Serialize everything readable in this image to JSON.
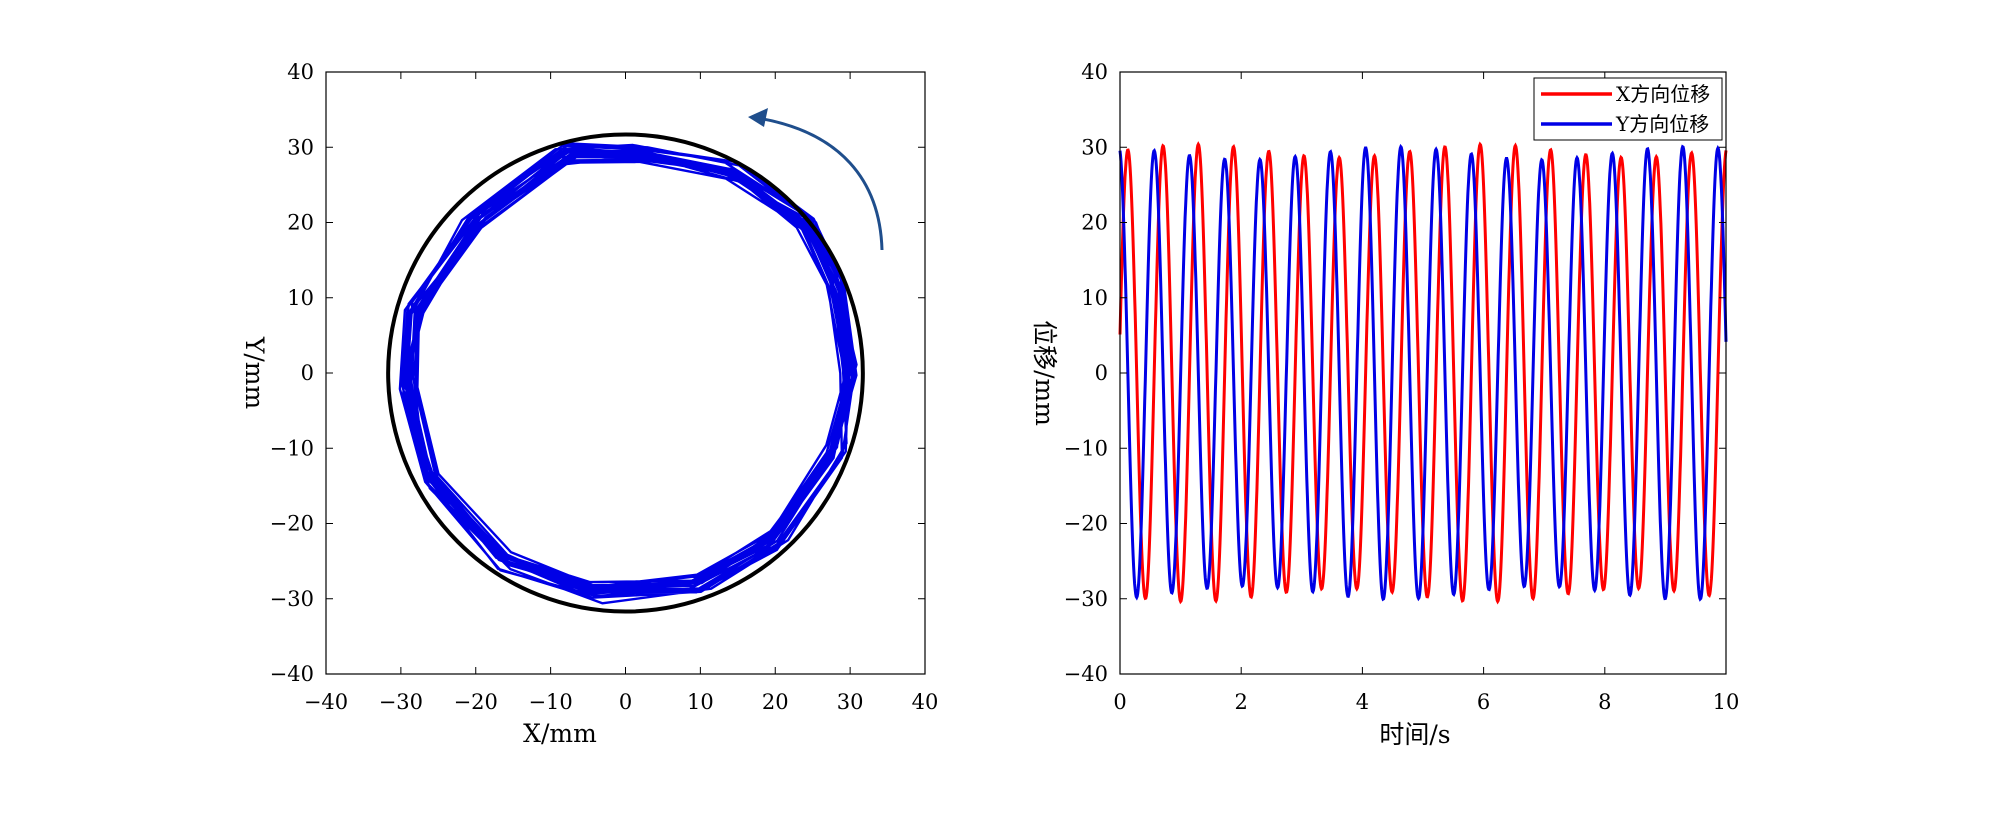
{
  "chart_data": [
    {
      "type": "line",
      "xlabel": "X/mm",
      "ylabel": "Y/mm",
      "xlim": [
        -40,
        40
      ],
      "ylim": [
        -40,
        40
      ],
      "xticks": [
        -40,
        -30,
        -20,
        -10,
        0,
        10,
        20,
        30,
        40
      ],
      "yticks": [
        -40,
        -30,
        -20,
        -10,
        0,
        10,
        20,
        30,
        40
      ],
      "grid": false,
      "reference_circle": {
        "cx": 0,
        "cy": 0,
        "r": 31.7,
        "color": "#000000"
      },
      "trajectory": {
        "color": "#0000e6",
        "nominal_radius": 29.5,
        "turns": 18,
        "vertices": [
          [
            30,
            0
          ],
          [
            28,
            12
          ],
          [
            24,
            20
          ],
          [
            14,
            27
          ],
          [
            2,
            29
          ],
          [
            -8,
            29
          ],
          [
            -20,
            20
          ],
          [
            -28,
            8
          ],
          [
            -29,
            -2
          ],
          [
            -26,
            -14
          ],
          [
            -16,
            -25
          ],
          [
            -4,
            -29
          ],
          [
            10,
            -28
          ],
          [
            20,
            -22
          ],
          [
            28,
            -10
          ]
        ]
      },
      "annotation": {
        "type": "rotation-arrow",
        "direction": "counterclockwise",
        "color": "#1f4e8c"
      }
    },
    {
      "type": "line",
      "xlabel": "时间/s",
      "ylabel": "位移/mm",
      "xlim": [
        0,
        10
      ],
      "ylim": [
        -40,
        40
      ],
      "xticks": [
        0,
        2,
        4,
        6,
        8,
        10
      ],
      "yticks": [
        -40,
        -30,
        -20,
        -10,
        0,
        10,
        20,
        30,
        40
      ],
      "grid": false,
      "legend_position": "top-right",
      "series": [
        {
          "name": "X方向位移",
          "color": "#ff0000",
          "amplitude": 29.5,
          "cycles_per_second": 1.72,
          "phase_deg": 10
        },
        {
          "name": "Y方向位移",
          "color": "#0000e6",
          "amplitude": 29.2,
          "cycles_per_second": 1.72,
          "phase_deg": 100
        }
      ]
    }
  ]
}
